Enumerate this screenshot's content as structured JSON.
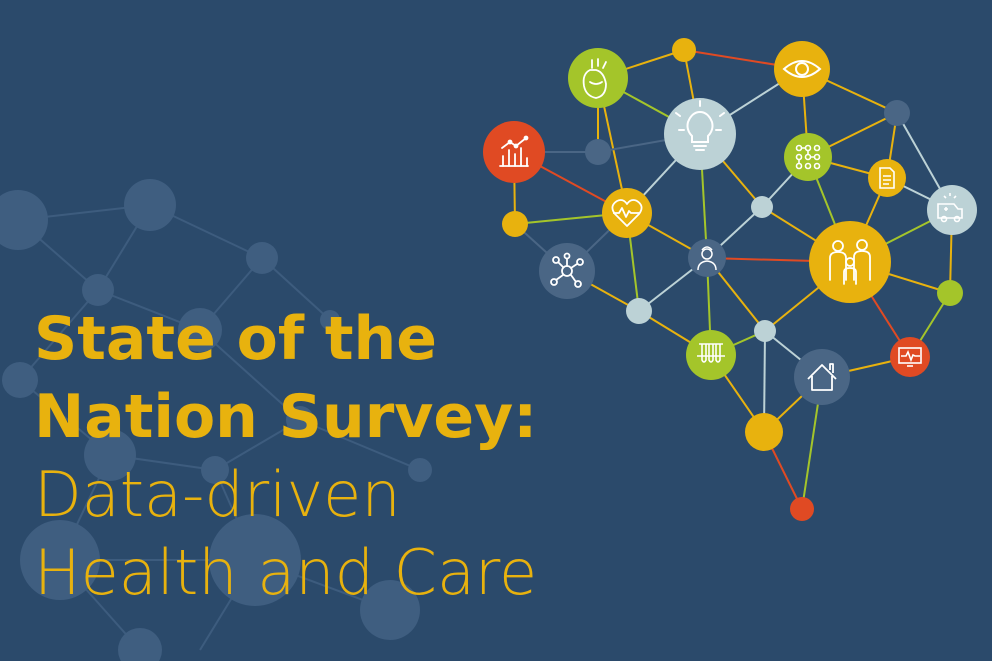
{
  "title": {
    "line1": "State of the",
    "line2": "Nation Survey:",
    "line3": "Data-driven",
    "line4": "Health and Care"
  },
  "colors": {
    "background": "#2b4a6b",
    "title": "#e8b20e",
    "yellow": "#e8b20e",
    "green": "#a4c52a",
    "red": "#e04a23",
    "lightblue": "#bcd2d6",
    "slate": "#4a6685",
    "faded": "#3f5e80"
  },
  "icons": [
    "heart-organ-icon",
    "eye-icon",
    "lightbulb-icon",
    "bar-chart-icon",
    "circuit-icon",
    "document-icon",
    "heartbeat-icon",
    "ambulance-icon",
    "network-icon",
    "doctor-icon",
    "family-icon",
    "test-tubes-icon",
    "home-icon",
    "monitor-pulse-icon"
  ]
}
